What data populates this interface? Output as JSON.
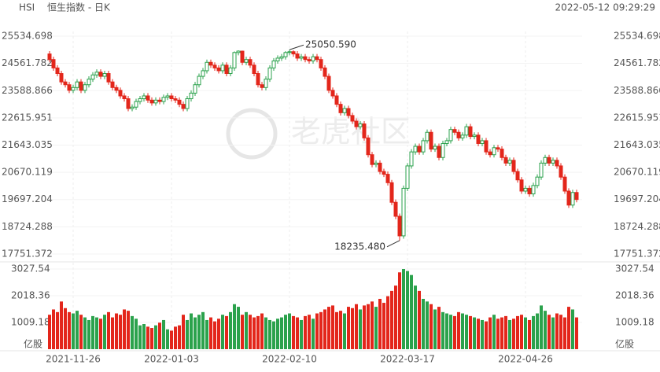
{
  "header": {
    "symbol": "HSI",
    "name": "恒生指数 - 日K",
    "time": "2022-05-12 09:29:29",
    "watermark": "老虎社区"
  },
  "chart_data": {
    "type": "candlestick",
    "up_color": "#2ba24c",
    "down_color": "#e3261b",
    "categories": [
      null,
      null,
      null,
      null,
      null,
      null,
      "2021-11-26",
      null,
      null,
      null,
      null,
      null,
      null,
      null,
      null,
      null,
      null,
      null,
      null,
      null,
      null,
      null,
      null,
      null,
      null,
      null,
      null,
      null,
      null,
      null,
      null,
      "2022-01-03",
      null,
      null,
      null,
      null,
      null,
      null,
      null,
      null,
      null,
      null,
      null,
      null,
      null,
      null,
      null,
      null,
      null,
      null,
      null,
      null,
      null,
      null,
      null,
      null,
      null,
      null,
      null,
      null,
      null,
      "2022-02-10",
      null,
      null,
      null,
      null,
      null,
      null,
      null,
      null,
      null,
      null,
      null,
      null,
      null,
      null,
      null,
      null,
      null,
      null,
      null,
      null,
      null,
      null,
      null,
      null,
      null,
      null,
      null,
      null,
      null,
      "2022-03-17",
      null,
      null,
      null,
      null,
      null,
      null,
      null,
      null,
      null,
      null,
      null,
      null,
      null,
      null,
      null,
      null,
      null,
      null,
      null,
      null,
      null,
      null,
      null,
      null,
      null,
      null,
      null,
      null,
      null,
      "2022-04-26",
      null,
      null,
      null,
      null,
      null,
      null,
      null,
      null,
      null,
      null,
      null,
      null,
      null
    ],
    "open": [
      24900,
      24700,
      24400,
      24200,
      23900,
      23800,
      23600,
      23700,
      23900,
      23600,
      23800,
      24000,
      24150,
      24250,
      24100,
      24200,
      23900,
      23700,
      23600,
      23400,
      23300,
      22950,
      23000,
      23200,
      23300,
      23400,
      23250,
      23150,
      23250,
      23200,
      23350,
      23400,
      23300,
      23250,
      23100,
      22950,
      23300,
      23500,
      23800,
      24100,
      24300,
      24600,
      24500,
      24400,
      24300,
      24500,
      24200,
      24400,
      24950,
      25000,
      24600,
      24700,
      24500,
      24200,
      23800,
      23700,
      24000,
      24400,
      24650,
      24750,
      24800,
      24950,
      24980,
      24900,
      24750,
      24800,
      24700,
      24650,
      24800,
      24700,
      24400,
      24100,
      23600,
      23400,
      23100,
      22800,
      22950,
      22700,
      22500,
      22300,
      22400,
      21900,
      21300,
      20950,
      21000,
      20700,
      20600,
      20300,
      19600,
      19100,
      18400,
      20100,
      20900,
      21400,
      21600,
      21400,
      21800,
      22100,
      21500,
      21600,
      21200,
      21700,
      21800,
      22200,
      22100,
      21900,
      22000,
      22300,
      21950,
      22000,
      21700,
      21800,
      21400,
      21300,
      21550,
      21500,
      21200,
      21000,
      21100,
      20700,
      20400,
      20000,
      20100,
      19900,
      20200,
      20500,
      21000,
      21200,
      21000,
      21100,
      20900,
      20500,
      20000,
      19500,
      19950
    ],
    "high": [
      25000,
      24800,
      24500,
      24300,
      24000,
      23900,
      23800,
      24000,
      24000,
      23900,
      24100,
      24250,
      24350,
      24350,
      24300,
      24300,
      24000,
      23800,
      23700,
      23500,
      23400,
      23100,
      23300,
      23400,
      23500,
      23500,
      23350,
      23350,
      23350,
      23450,
      23500,
      23500,
      23400,
      23350,
      23200,
      23400,
      23600,
      23900,
      24200,
      24400,
      24700,
      24700,
      24600,
      24500,
      24600,
      24600,
      24500,
      24990,
      25030,
      25020,
      24800,
      24800,
      24600,
      24300,
      23900,
      24100,
      24500,
      24750,
      24850,
      24900,
      25000,
      25050.59,
      25030,
      25000,
      24900,
      24900,
      24800,
      24900,
      24900,
      24800,
      24500,
      24200,
      23700,
      23500,
      23200,
      23050,
      23050,
      22800,
      22600,
      22500,
      22500,
      22000,
      21400,
      21100,
      21100,
      20800,
      20700,
      20400,
      19700,
      19200,
      20200,
      21000,
      21500,
      21700,
      21700,
      21900,
      22200,
      22200,
      21700,
      21700,
      21800,
      21900,
      22300,
      22300,
      22200,
      22100,
      22400,
      22400,
      22100,
      22100,
      21900,
      21900,
      21500,
      21650,
      21650,
      21600,
      21300,
      21200,
      21200,
      20800,
      20500,
      20200,
      20200,
      20300,
      20600,
      21100,
      21300,
      21300,
      21200,
      21200,
      21000,
      20600,
      20100,
      20050,
      20050
    ],
    "low": [
      24600,
      24300,
      24100,
      23800,
      23700,
      23500,
      23500,
      23600,
      23500,
      23500,
      23700,
      23900,
      24050,
      24000,
      24000,
      23800,
      23600,
      23500,
      23300,
      23200,
      22850,
      22850,
      22900,
      23100,
      23200,
      23150,
      23050,
      23050,
      23100,
      23100,
      23250,
      23200,
      23150,
      23000,
      22850,
      22850,
      23200,
      23400,
      23700,
      24000,
      24200,
      24400,
      24300,
      24200,
      24200,
      24100,
      24100,
      24300,
      24850,
      24500,
      24500,
      24400,
      24100,
      23700,
      23600,
      23600,
      23900,
      24300,
      24550,
      24650,
      24700,
      24850,
      24800,
      24650,
      24650,
      24600,
      24550,
      24550,
      24600,
      24300,
      24000,
      23500,
      23300,
      23000,
      22700,
      22700,
      22600,
      22400,
      22200,
      22200,
      21800,
      21200,
      20850,
      20850,
      20600,
      20500,
      20200,
      19500,
      19000,
      18235.48,
      18300,
      20000,
      20800,
      21300,
      21300,
      21300,
      21700,
      21400,
      21400,
      21100,
      21100,
      21600,
      21700,
      22000,
      21800,
      21800,
      21900,
      21850,
      21850,
      21600,
      21600,
      21300,
      21200,
      21200,
      21400,
      21100,
      20900,
      20900,
      20600,
      20300,
      19900,
      19900,
      19800,
      19800,
      20100,
      20400,
      20900,
      20900,
      20900,
      20800,
      20400,
      19900,
      19400,
      19400,
      19600
    ],
    "close": [
      24700,
      24400,
      24200,
      23900,
      23800,
      23600,
      23700,
      23900,
      23600,
      23800,
      24000,
      24150,
      24250,
      24100,
      24200,
      23900,
      23700,
      23600,
      23400,
      23300,
      22950,
      23000,
      23200,
      23300,
      23400,
      23250,
      23150,
      23250,
      23200,
      23350,
      23400,
      23300,
      23250,
      23100,
      22950,
      23300,
      23500,
      23800,
      24100,
      24300,
      24600,
      24500,
      24400,
      24300,
      24500,
      24200,
      24400,
      24950,
      25000,
      24600,
      24700,
      24500,
      24200,
      23800,
      23700,
      24000,
      24400,
      24650,
      24750,
      24800,
      24950,
      24980,
      24900,
      24750,
      24800,
      24700,
      24650,
      24800,
      24700,
      24400,
      24100,
      23600,
      23400,
      23100,
      22800,
      22950,
      22700,
      22500,
      22300,
      22400,
      21900,
      21300,
      20950,
      21000,
      20700,
      20600,
      20300,
      19600,
      19100,
      18400,
      20100,
      20900,
      21400,
      21600,
      21400,
      21800,
      22100,
      21500,
      21600,
      21200,
      21700,
      21800,
      22200,
      22100,
      21900,
      22000,
      22300,
      21950,
      22000,
      21700,
      21800,
      21400,
      21300,
      21550,
      21500,
      21200,
      21000,
      21100,
      20700,
      20400,
      20000,
      20100,
      19900,
      20200,
      20500,
      21000,
      21200,
      21000,
      21100,
      20900,
      20500,
      20000,
      19500,
      19950,
      19700
    ],
    "volume": [
      1300,
      1500,
      1400,
      1800,
      1550,
      1400,
      1350,
      1450,
      1300,
      1200,
      1100,
      1250,
      1200,
      1150,
      1300,
      1400,
      1200,
      1350,
      1300,
      1500,
      1450,
      1250,
      1150,
      900,
      950,
      850,
      800,
      900,
      1000,
      1100,
      750,
      700,
      850,
      900,
      1300,
      1100,
      1350,
      1200,
      1300,
      1400,
      1100,
      1200,
      1050,
      1150,
      1300,
      1250,
      1400,
      1700,
      1600,
      1300,
      1400,
      1300,
      1200,
      1250,
      1350,
      1200,
      1100,
      1050,
      1150,
      1200,
      1300,
      1350,
      1250,
      1200,
      1100,
      1250,
      1300,
      1150,
      1350,
      1400,
      1500,
      1600,
      1650,
      1400,
      1450,
      1350,
      1600,
      1550,
      1700,
      1500,
      1650,
      1700,
      1800,
      1600,
      1900,
      1750,
      2000,
      2200,
      2400,
      2900,
      3027,
      2950,
      2800,
      2400,
      2200,
      1900,
      1800,
      1700,
      1500,
      1600,
      1400,
      1350,
      1300,
      1250,
      1400,
      1350,
      1300,
      1250,
      1200,
      1150,
      1100,
      1050,
      1200,
      1300,
      1150,
      1200,
      1250,
      1100,
      1150,
      1250,
      1300,
      1200,
      1100,
      1250,
      1350,
      1650,
      1450,
      1300,
      1200,
      1350,
      1300,
      1200,
      1600,
      1500,
      1200
    ],
    "ylim": [
      17751.372,
      25534.698
    ],
    "yticks": [
      25534.698,
      24561.782,
      23588.866,
      22615.951,
      21643.035,
      20670.119,
      19697.204,
      18724.288,
      17751.372
    ],
    "y2lim": [
      0,
      3027.54
    ],
    "y2ticks": [
      3027.54,
      2018.36,
      1009.18
    ],
    "y2_unit": "亿股",
    "annotations": [
      {
        "text": "25050.590"
      },
      {
        "text": "18235.480"
      }
    ]
  }
}
